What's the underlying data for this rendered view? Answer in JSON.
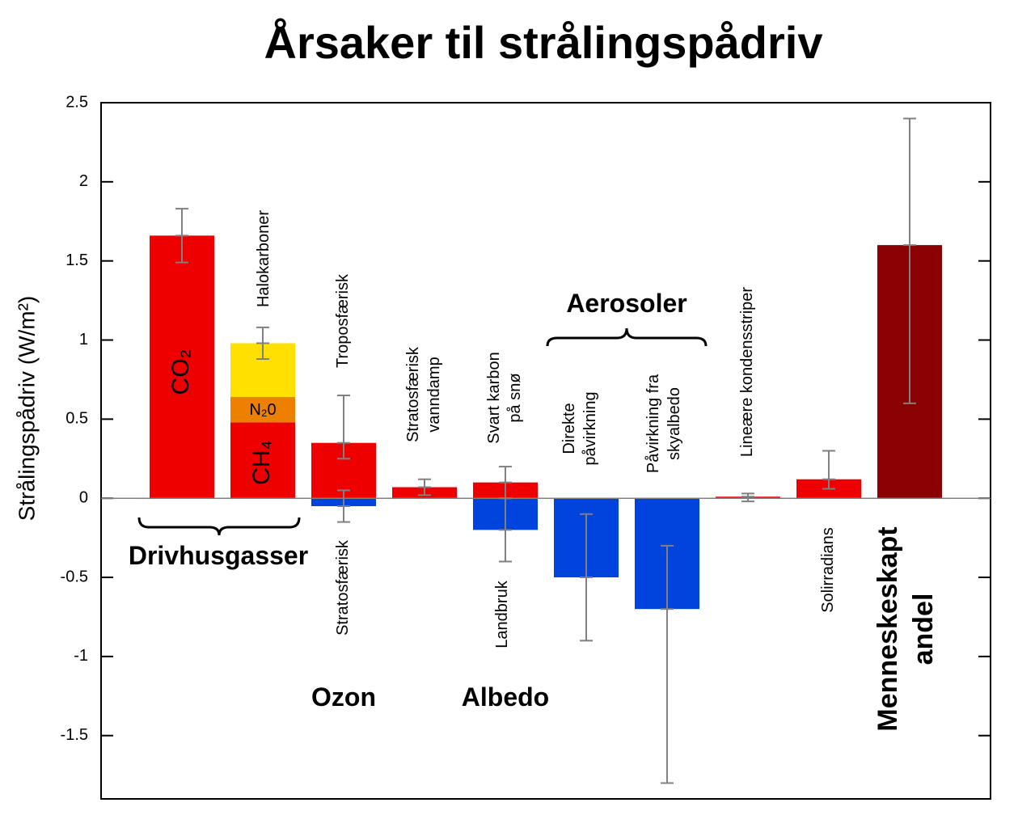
{
  "chart_data": {
    "type": "bar",
    "title": "Årsaker til strålingspådriv",
    "ylabel": "Strålingspådriv (W/m²)",
    "ylim": [
      -1.9,
      2.5
    ],
    "yticks": [
      2.5,
      2,
      1.5,
      1,
      0.5,
      0,
      -0.5,
      -1,
      -1.5
    ],
    "bars": [
      {
        "segments": [
          {
            "label": [
              "CO₂"
            ],
            "value": 1.66,
            "color": "#ee0000",
            "low": 1.49,
            "high": 1.83
          }
        ]
      },
      {
        "segments": [
          {
            "label": [
              "CH₄"
            ],
            "value": 0.48,
            "color": "#ee0000"
          },
          {
            "label": [
              "N₂0"
            ],
            "value": 0.16,
            "color": "#ee8000"
          },
          {
            "label": [
              "Halokarboner"
            ],
            "value": 0.34,
            "color": "#ffe000"
          }
        ],
        "low": 0.88,
        "high": 1.08
      },
      {
        "segments": [
          {
            "label": [
              "Troposfærisk"
            ],
            "value": 0.35,
            "color": "#ee0000",
            "low": 0.25,
            "high": 0.65
          },
          {
            "label": [
              "Stratosfærisk"
            ],
            "value": -0.05,
            "color": "#0044dd",
            "low": -0.15,
            "high": 0.05
          }
        ]
      },
      {
        "segments": [
          {
            "label": [
              "Stratosfærisk",
              "vanndamp"
            ],
            "value": 0.07,
            "color": "#ee0000",
            "low": 0.02,
            "high": 0.12
          }
        ]
      },
      {
        "segments": [
          {
            "label": [
              "Svart karbon",
              "på snø"
            ],
            "value": 0.1,
            "color": "#ee0000",
            "low": 0.0,
            "high": 0.2
          },
          {
            "label": [
              "Landbruk"
            ],
            "value": -0.2,
            "color": "#0044dd",
            "low": -0.4,
            "high": 0.0
          }
        ]
      },
      {
        "segments": [
          {
            "label": [
              "Direkte",
              "påvirkning"
            ],
            "value": -0.5,
            "color": "#0044dd",
            "low": -0.9,
            "high": -0.1
          }
        ]
      },
      {
        "segments": [
          {
            "label": [
              "Påvirkning fra",
              "skyalbedo"
            ],
            "value": -0.7,
            "color": "#0044dd",
            "low": -1.8,
            "high": -0.3
          }
        ]
      },
      {
        "segments": [
          {
            "label": [
              "Lineære kondensstriper"
            ],
            "value": 0.01,
            "color": "#ee0000",
            "low": -0.02,
            "high": 0.03
          }
        ]
      },
      {
        "segments": [
          {
            "label": [
              "Solirradians"
            ],
            "value": 0.12,
            "color": "#ee0000",
            "low": 0.06,
            "high": 0.3
          }
        ]
      },
      {
        "segments": [
          {
            "value": 1.6,
            "color": "#8b0000",
            "low": 0.6,
            "high": 2.4
          }
        ]
      }
    ],
    "groups": [
      {
        "label": [
          "Drivhusgasser"
        ]
      },
      {
        "label": [
          "Ozon"
        ]
      },
      {
        "label": [
          "Albedo"
        ]
      },
      {
        "label": [
          "Aerosoler"
        ]
      },
      {
        "label": [
          "Menneskeskapt",
          "andel"
        ]
      }
    ]
  }
}
